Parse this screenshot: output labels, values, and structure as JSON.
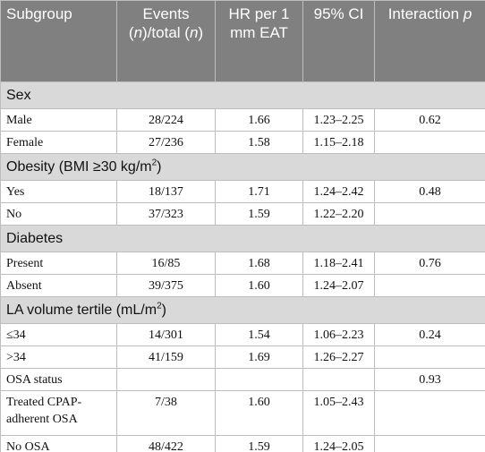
{
  "table": {
    "header": [
      [
        "Subgroup"
      ],
      [
        "Events (",
        "n",
        ")/total (",
        "n",
        ")"
      ],
      [
        "HR per 1 mm EAT"
      ],
      [
        "95% CI"
      ],
      [
        "Interaction ",
        "p"
      ]
    ],
    "rows": [
      {
        "section": [
          "Sex"
        ]
      },
      {
        "cells": [
          "Male",
          "28/224",
          "1.66",
          "1.23–2.25",
          "0.62"
        ]
      },
      {
        "cells": [
          "Female",
          "27/236",
          "1.58",
          "1.15–2.18",
          null
        ]
      },
      {
        "section": [
          "Obesity (BMI ≥30 kg/m",
          "2",
          ")"
        ]
      },
      {
        "cells": [
          "Yes",
          "18/137",
          "1.71",
          "1.24–2.42",
          "0.48"
        ]
      },
      {
        "cells": [
          "No",
          "37/323",
          "1.59",
          "1.22–2.20",
          null
        ]
      },
      {
        "section": [
          "Diabetes"
        ]
      },
      {
        "cells": [
          "Present",
          "16/85",
          "1.68",
          "1.18–2.41",
          "0.76"
        ]
      },
      {
        "cells": [
          "Absent",
          "39/375",
          "1.60",
          "1.24–2.07",
          null
        ]
      },
      {
        "section": [
          "LA volume tertile (mL/m",
          "2",
          ")"
        ]
      },
      {
        "cells": [
          "≤34",
          "14/301",
          "1.54",
          "1.06–2.23",
          "0.24"
        ]
      },
      {
        "cells": [
          ">34",
          "41/159",
          "1.69",
          "1.26–2.27",
          null
        ]
      },
      {
        "cells": [
          "OSA status",
          null,
          null,
          null,
          "0.93"
        ]
      },
      {
        "cells": [
          "Treated CPAP-adherent OSA",
          "7/38",
          "1.60",
          "1.05–2.43",
          null
        ]
      },
      {
        "cells": [
          "No OSA",
          "48/422",
          "1.59",
          "1.24–2.05",
          null
        ]
      }
    ]
  }
}
